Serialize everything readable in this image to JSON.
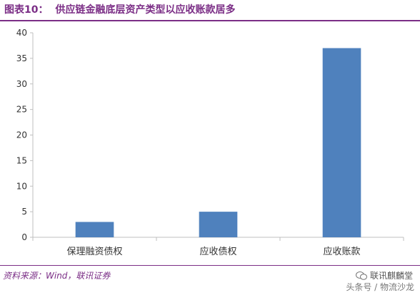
{
  "header": {
    "figure_label": "图表10：",
    "title": "供应链金融底层资产类型以应收账款居多"
  },
  "footer": {
    "source": "资料来源：Wind，联讯证券",
    "watermark_top": "联讯麒麟堂",
    "watermark_bottom": "头条号 / 物流沙龙"
  },
  "colors": {
    "bar": "#4f81bd",
    "title": "#7b2e86",
    "axis": "#bfbfbf"
  },
  "chart_data": {
    "type": "bar",
    "categories": [
      "保理融资债权",
      "应收债权",
      "应收账款"
    ],
    "values": [
      3,
      5,
      37
    ],
    "ylim": [
      0,
      40
    ],
    "yticks": [
      0,
      5,
      10,
      15,
      20,
      25,
      30,
      35,
      40
    ],
    "grid": false,
    "legend": "none"
  }
}
